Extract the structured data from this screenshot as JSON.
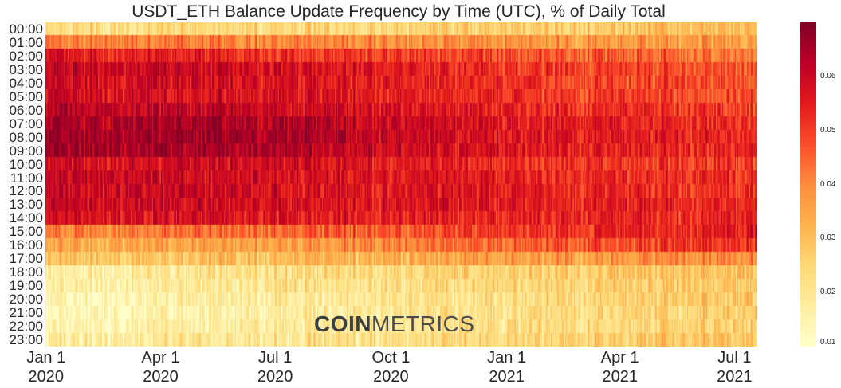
{
  "chart_data": {
    "type": "heatmap",
    "title": "USDT_ETH Balance Update Frequency by Time (UTC), % of Daily Total",
    "y_categories": [
      "00:00",
      "01:00",
      "02:00",
      "03:00",
      "04:00",
      "05:00",
      "06:00",
      "07:00",
      "08:00",
      "09:00",
      "10:00",
      "11:00",
      "12:00",
      "13:00",
      "14:00",
      "15:00",
      "16:00",
      "17:00",
      "18:00",
      "19:00",
      "20:00",
      "21:00",
      "22:00",
      "23:00"
    ],
    "x_ticks": [
      {
        "month": "Jan 1",
        "year": "2020",
        "date": "2020-01-01"
      },
      {
        "month": "Apr 1",
        "year": "2020",
        "date": "2020-04-01"
      },
      {
        "month": "Jul 1",
        "year": "2020",
        "date": "2020-07-01"
      },
      {
        "month": "Oct 1",
        "year": "2020",
        "date": "2020-10-01"
      },
      {
        "month": "Jan 1",
        "year": "2021",
        "date": "2021-01-01"
      },
      {
        "month": "Apr 1",
        "year": "2021",
        "date": "2021-04-01"
      },
      {
        "month": "Jul 1",
        "year": "2021",
        "date": "2021-07-01"
      }
    ],
    "x_range": [
      "2020-01-01",
      "2021-07-18"
    ],
    "colorbar": {
      "range": [
        0.01,
        0.07
      ],
      "ticks": [
        "0.01",
        "0.02",
        "0.03",
        "0.04",
        "0.05",
        "0.06"
      ],
      "colormap": "YlOrRd",
      "colors": [
        "#ffffcc",
        "#ffeda0",
        "#fed976",
        "#feb24c",
        "#fd8d3c",
        "#fc4e2a",
        "#e31a1c",
        "#bd0026",
        "#800026"
      ]
    },
    "hourly_profile": {
      "periods": [
        "2020-01-01",
        "2020-07-01",
        "2021-01-01",
        "2021-07-18"
      ],
      "values": [
        [
          0.022,
          0.024,
          0.026,
          0.03
        ],
        [
          0.042,
          0.04,
          0.038,
          0.036
        ],
        [
          0.056,
          0.052,
          0.048,
          0.042
        ],
        [
          0.06,
          0.058,
          0.052,
          0.046
        ],
        [
          0.058,
          0.057,
          0.052,
          0.046
        ],
        [
          0.058,
          0.057,
          0.052,
          0.047
        ],
        [
          0.061,
          0.06,
          0.054,
          0.05
        ],
        [
          0.064,
          0.064,
          0.056,
          0.052
        ],
        [
          0.066,
          0.065,
          0.057,
          0.053
        ],
        [
          0.066,
          0.064,
          0.056,
          0.052
        ],
        [
          0.058,
          0.058,
          0.052,
          0.05
        ],
        [
          0.06,
          0.058,
          0.054,
          0.051
        ],
        [
          0.06,
          0.058,
          0.055,
          0.052
        ],
        [
          0.06,
          0.058,
          0.055,
          0.053
        ],
        [
          0.057,
          0.056,
          0.054,
          0.054
        ],
        [
          0.04,
          0.044,
          0.05,
          0.055
        ],
        [
          0.033,
          0.036,
          0.045,
          0.052
        ],
        [
          0.028,
          0.03,
          0.036,
          0.04
        ],
        [
          0.016,
          0.022,
          0.026,
          0.03
        ],
        [
          0.014,
          0.02,
          0.024,
          0.028
        ],
        [
          0.012,
          0.018,
          0.023,
          0.028
        ],
        [
          0.012,
          0.017,
          0.022,
          0.027
        ],
        [
          0.013,
          0.018,
          0.022,
          0.026
        ],
        [
          0.017,
          0.02,
          0.024,
          0.028
        ]
      ]
    },
    "grid": false
  },
  "watermark": {
    "bold": "COIN",
    "light": "METRICS"
  }
}
